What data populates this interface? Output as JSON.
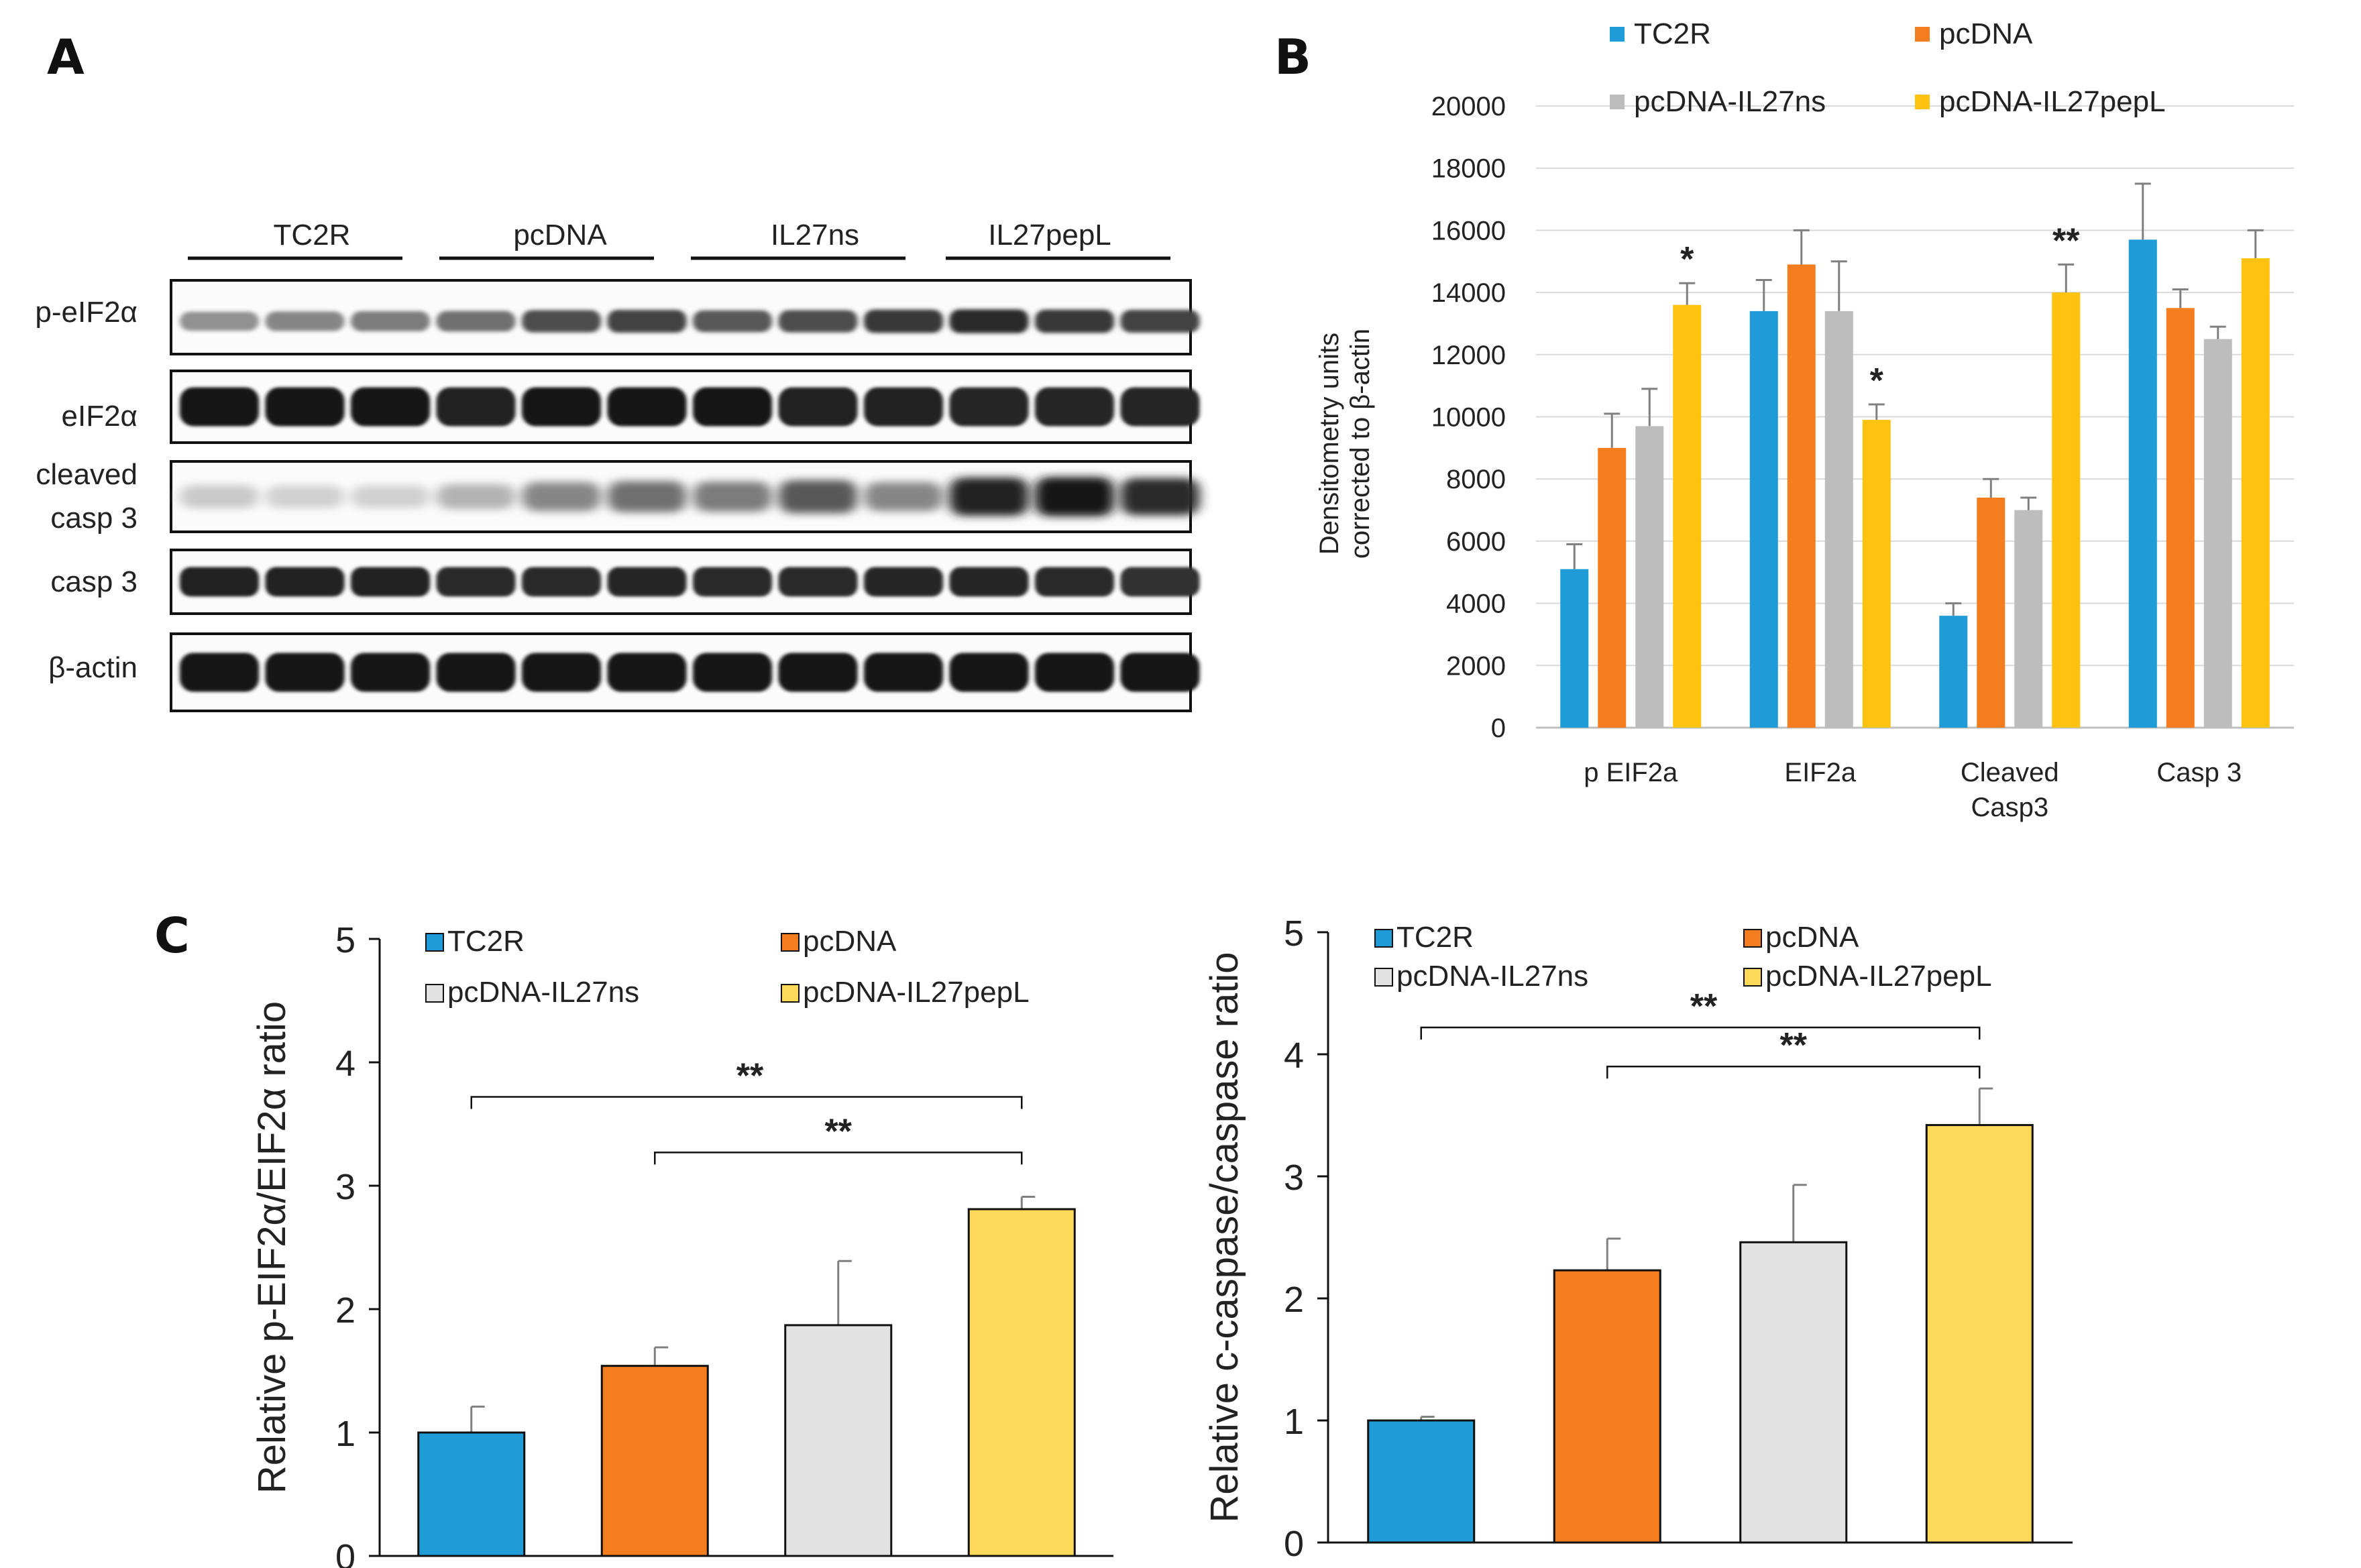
{
  "figure": {
    "panel_a": {
      "letter": "A",
      "groups": [
        "TC2R",
        "pcDNA",
        "IL27ns",
        "IL27pepL"
      ],
      "blots": [
        {
          "label_lines": [
            "p-eIF2α"
          ],
          "intensity": [
            0.4,
            0.45,
            0.5,
            0.55,
            0.7,
            0.75,
            0.65,
            0.7,
            0.8,
            0.85,
            0.8,
            0.75
          ],
          "band_style": "thin"
        },
        {
          "label_lines": [
            "eIF2α"
          ],
          "intensity": [
            0.95,
            0.95,
            0.95,
            0.9,
            0.95,
            0.95,
            0.95,
            0.9,
            0.9,
            0.88,
            0.88,
            0.88
          ],
          "band_style": "thick"
        },
        {
          "label_lines": [
            "cleaved",
            "casp 3"
          ],
          "intensity": [
            0.15,
            0.12,
            0.12,
            0.25,
            0.45,
            0.55,
            0.5,
            0.65,
            0.45,
            0.9,
            0.95,
            0.85
          ],
          "band_style": "noisy"
        },
        {
          "label_lines": [
            "casp 3"
          ],
          "intensity": [
            0.9,
            0.9,
            0.9,
            0.85,
            0.85,
            0.88,
            0.85,
            0.85,
            0.88,
            0.88,
            0.85,
            0.82
          ],
          "band_style": "medium"
        },
        {
          "label_lines": [
            "β-actin"
          ],
          "intensity": [
            0.95,
            0.95,
            0.95,
            0.95,
            0.95,
            0.95,
            0.95,
            0.95,
            0.95,
            0.95,
            0.95,
            0.95
          ],
          "band_style": "thick"
        }
      ]
    },
    "panel_b_letter": "B",
    "panel_c_letter": "C"
  },
  "chart_data": [
    {
      "id": "B",
      "type": "bar",
      "categories": [
        [
          "p EIF2a"
        ],
        [
          "EIF2a"
        ],
        [
          "Cleaved",
          "Casp3"
        ],
        [
          "Casp 3"
        ]
      ],
      "series": [
        {
          "name": "TC2R",
          "color": "#1f9bd7",
          "values": [
            5100,
            13400,
            3600,
            15700
          ],
          "errors": [
            800,
            1000,
            400,
            1800
          ]
        },
        {
          "name": "pcDNA",
          "color": "#f47d20",
          "values": [
            9000,
            14900,
            7400,
            13500
          ],
          "errors": [
            1100,
            1100,
            600,
            600
          ]
        },
        {
          "name": "pcDNA-IL27ns",
          "color": "#bdbdbd",
          "values": [
            9700,
            13400,
            7000,
            12500
          ],
          "errors": [
            1200,
            1600,
            400,
            400
          ]
        },
        {
          "name": "pcDNA-IL27pepL",
          "color": "#ffc20e",
          "values": [
            13600,
            9900,
            14000,
            15100
          ],
          "errors": [
            700,
            500,
            900,
            900
          ]
        }
      ],
      "annotations": [
        {
          "category": 0,
          "series": 3,
          "text": "*"
        },
        {
          "category": 1,
          "series": 3,
          "text": "*"
        },
        {
          "category": 2,
          "series": 3,
          "text": "**"
        }
      ],
      "ylim": [
        0,
        20000
      ],
      "yticks": [
        0,
        2000,
        4000,
        6000,
        8000,
        10000,
        12000,
        14000,
        16000,
        18000,
        20000
      ],
      "ytick_labels": [
        "0",
        "2000",
        "4000",
        "6000",
        "8000",
        "10000",
        "12000",
        "14000",
        "16000",
        "18000",
        "20000"
      ],
      "ylabel_lines": [
        "Densitometry units",
        "corrected to β-actin"
      ],
      "xlabel": "",
      "grid": true,
      "legend_position": "top"
    },
    {
      "id": "C1",
      "type": "bar",
      "categories": [
        "TC2R",
        "pcDNA",
        "pcDNA-IL27ns",
        "pcDNA-IL27pepL"
      ],
      "values": [
        1.0,
        1.54,
        1.87,
        2.81
      ],
      "errors": [
        0.21,
        0.15,
        0.52,
        0.1
      ],
      "colors": [
        "#1f9bd7",
        "#f47d20",
        "#e2e2e2",
        "#ffd95a"
      ],
      "legend": [
        "TC2R",
        "pcDNA",
        "pcDNA-IL27ns",
        "pcDNA-IL27pepL"
      ],
      "ylim": [
        0,
        5
      ],
      "yticks": [
        0,
        1,
        2,
        3,
        4,
        5
      ],
      "ylabel": "Relative p-EIF2α/EIF2α ratio",
      "xlabel": "",
      "brackets": [
        {
          "from": 0,
          "to": 3,
          "text": "**",
          "value": 3.72
        },
        {
          "from": 1,
          "to": 3,
          "text": "**",
          "value": 3.27
        }
      ]
    },
    {
      "id": "C2",
      "type": "bar",
      "categories": [
        "TC2R",
        "pcDNA",
        "pcDNA-IL27ns",
        "pcDNA-IL27pepL"
      ],
      "values": [
        1.0,
        2.23,
        2.46,
        3.42
      ],
      "errors": [
        0.03,
        0.26,
        0.47,
        0.3
      ],
      "colors": [
        "#1f9bd7",
        "#f47d20",
        "#e2e2e2",
        "#ffd95a"
      ],
      "legend": [
        "TC2R",
        "pcDNA",
        "pcDNA-IL27ns",
        "pcDNA-IL27pepL"
      ],
      "ylim": [
        0,
        5
      ],
      "yticks": [
        0,
        1,
        2,
        3,
        4,
        5
      ],
      "ylabel": "Relative c-caspase/caspase ratio",
      "xlabel": "",
      "brackets": [
        {
          "from": 0,
          "to": 3,
          "text": "**",
          "value": 4.22
        },
        {
          "from": 1,
          "to": 3,
          "text": "**",
          "value": 3.9
        }
      ]
    }
  ]
}
